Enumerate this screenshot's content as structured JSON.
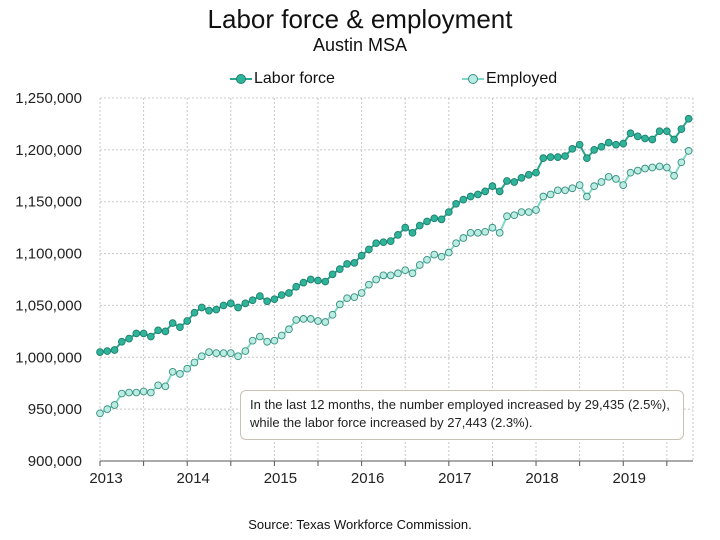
{
  "colors": {
    "labor_line": "#2aa58e",
    "labor_fill": "#2eb49a",
    "labor_stroke": "#1f7f6c",
    "employed_line": "#7fd9c8",
    "employed_fill": "#b9ece2",
    "employed_stroke": "#3a8f80",
    "grid": "#c8c8c8"
  },
  "annotation": "In the last 12 months, the number employed increased by 29,435 (2.5%), while the labor force increased by 27,443 (2.3%).",
  "source": "Source: Texas Workforce Commission.",
  "chart_data": {
    "type": "line",
    "title": "Labor force & employment",
    "subtitle": "Austin MSA",
    "xlabel": "",
    "ylabel": "",
    "ylim": [
      900000,
      1250000
    ],
    "yticks": [
      900000,
      950000,
      1000000,
      1050000,
      1100000,
      1150000,
      1200000,
      1250000
    ],
    "ytick_labels": [
      "900,000",
      "950,000",
      "1,000,000",
      "1,050,000",
      "1,100,000",
      "1,150,000",
      "1,200,000",
      "1,250,000"
    ],
    "xtick_labels": [
      "2013",
      "2014",
      "2015",
      "2016",
      "2017",
      "2018",
      "2019"
    ],
    "x_start": "2013-01",
    "x_end": "2019-10",
    "grid": true,
    "legend_position": "top-center",
    "series": [
      {
        "name": "Labor force",
        "values": [
          1005000,
          1006000,
          1007000,
          1015000,
          1018000,
          1023000,
          1023000,
          1020000,
          1026000,
          1025000,
          1033000,
          1029000,
          1035000,
          1043000,
          1048000,
          1045000,
          1046000,
          1050000,
          1052000,
          1048000,
          1052000,
          1055000,
          1059000,
          1054000,
          1056000,
          1060000,
          1062000,
          1068000,
          1072000,
          1075000,
          1074000,
          1073000,
          1080000,
          1085000,
          1090000,
          1091000,
          1098000,
          1104000,
          1110000,
          1111000,
          1112000,
          1118000,
          1125000,
          1120000,
          1127000,
          1131000,
          1134000,
          1133000,
          1140000,
          1148000,
          1152000,
          1155000,
          1157000,
          1160000,
          1165000,
          1160000,
          1170000,
          1169000,
          1173000,
          1176000,
          1178000,
          1192000,
          1193000,
          1193000,
          1194000,
          1201000,
          1205000,
          1192000,
          1200000,
          1203000,
          1207000,
          1205000,
          1206000,
          1216000,
          1213000,
          1211000,
          1210000,
          1218000,
          1218000,
          1210000,
          1220000,
          1230000
        ]
      },
      {
        "name": "Employed",
        "values": [
          946000,
          950000,
          954000,
          965000,
          966000,
          966000,
          967000,
          966000,
          973000,
          972000,
          986000,
          984000,
          989000,
          995000,
          1001000,
          1005000,
          1004000,
          1004000,
          1004000,
          1001000,
          1006000,
          1016000,
          1020000,
          1015000,
          1016000,
          1021000,
          1027000,
          1036000,
          1037000,
          1037000,
          1035000,
          1034000,
          1041000,
          1051000,
          1057000,
          1058000,
          1062000,
          1070000,
          1075000,
          1079000,
          1079000,
          1081000,
          1084000,
          1081000,
          1089000,
          1094000,
          1099000,
          1097000,
          1101000,
          1110000,
          1115000,
          1120000,
          1120000,
          1121000,
          1125000,
          1120000,
          1136000,
          1137000,
          1140000,
          1140000,
          1142000,
          1155000,
          1157000,
          1161000,
          1161000,
          1163000,
          1166000,
          1155000,
          1165000,
          1169000,
          1174000,
          1172000,
          1166000,
          1178000,
          1180000,
          1182000,
          1183000,
          1184000,
          1183000,
          1175000,
          1188000,
          1199000
        ]
      }
    ]
  }
}
